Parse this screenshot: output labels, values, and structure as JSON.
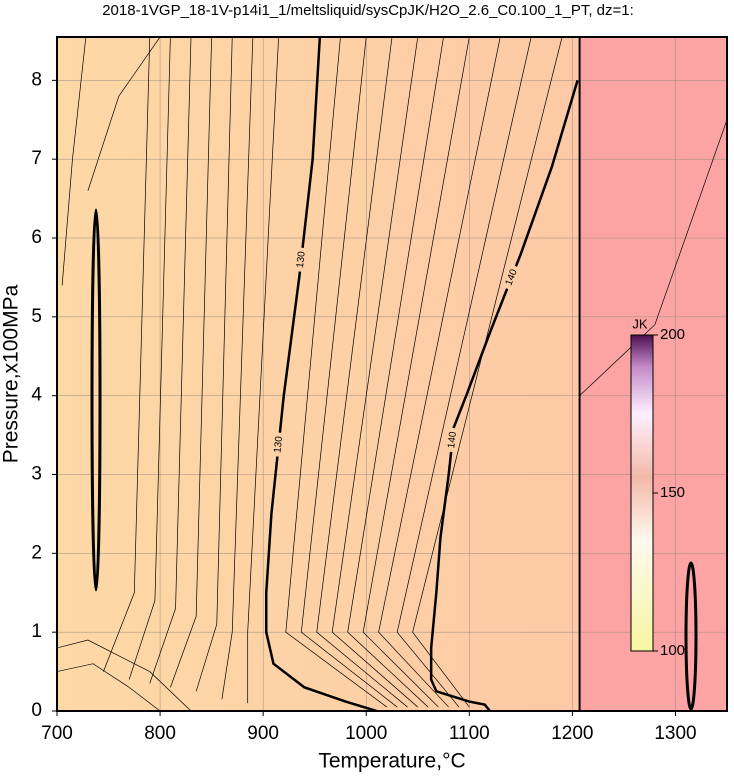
{
  "chart_data": {
    "type": "contour",
    "title": "2018-1VGP_18-1V-p14i1_1/meltsliquid/sysCpJK/H2O_2.6_C0.100_1_PT, dz=1:",
    "x_label": "Temperature,°C",
    "y_label": "Pressure,x100MPa",
    "xlim": [
      700,
      1350
    ],
    "ylim": [
      0,
      8.55
    ],
    "xticks": [
      700,
      800,
      900,
      1000,
      1100,
      1200,
      1300
    ],
    "yticks": [
      0,
      1,
      2,
      3,
      4,
      5,
      6,
      7,
      8
    ],
    "grid": true,
    "contours": [
      {
        "level": 130,
        "x": [
          955,
          948,
          935,
          920,
          908,
          903,
          903,
          910,
          940,
          980,
          1010
        ],
        "y": [
          8.55,
          7,
          5.5,
          4,
          2.5,
          1.5,
          1,
          0.6,
          0.3,
          0.12,
          0
        ]
      },
      {
        "level": 140,
        "x": [
          1205,
          1180,
          1150,
          1120,
          1097,
          1085,
          1080,
          1072,
          1068,
          1063,
          1063,
          1068,
          1080,
          1100,
          1115,
          1120
        ],
        "y": [
          8,
          6.9,
          5.8,
          4.8,
          4,
          3.6,
          3,
          2.2,
          1.5,
          0.8,
          0.4,
          0.25,
          0.2,
          0.12,
          0.08,
          0
        ]
      }
    ],
    "lines": [
      {
        "x": [
          1207,
          1207
        ],
        "y": [
          0,
          8.55
        ]
      },
      {
        "x": [
          790,
          775,
          745
        ],
        "y": [
          8.55,
          1.5,
          0.5
        ]
      },
      {
        "x": [
          810,
          795,
          770
        ],
        "y": [
          8.55,
          1.4,
          0.4
        ]
      },
      {
        "x": [
          830,
          815,
          790
        ],
        "y": [
          8.55,
          1.3,
          0.35
        ]
      },
      {
        "x": [
          850,
          835,
          810
        ],
        "y": [
          8.55,
          1.2,
          0.3
        ]
      },
      {
        "x": [
          870,
          855,
          835
        ],
        "y": [
          8.55,
          1.1,
          0.25
        ]
      },
      {
        "x": [
          890,
          870,
          860
        ],
        "y": [
          8.55,
          1,
          0.15
        ]
      },
      {
        "x": [
          915,
          885,
          885
        ],
        "y": [
          8.55,
          1,
          0.1
        ]
      },
      {
        "x": [
          975,
          922,
          1020
        ],
        "y": [
          8.55,
          1,
          0.05
        ]
      },
      {
        "x": [
          1000,
          937,
          1030
        ],
        "y": [
          8.55,
          1,
          0.05
        ]
      },
      {
        "x": [
          1025,
          952,
          1040
        ],
        "y": [
          8.55,
          1,
          0.05
        ]
      },
      {
        "x": [
          1050,
          967,
          1050
        ],
        "y": [
          8.55,
          1,
          0.05
        ]
      },
      {
        "x": [
          1075,
          982,
          1060
        ],
        "y": [
          8.55,
          1,
          0.05
        ]
      },
      {
        "x": [
          1100,
          997,
          1070
        ],
        "y": [
          8.55,
          1,
          0.05
        ]
      },
      {
        "x": [
          1130,
          1012,
          1080
        ],
        "y": [
          8.55,
          1,
          0.05
        ]
      },
      {
        "x": [
          1160,
          1030,
          1090
        ],
        "y": [
          8.55,
          1,
          0.05
        ]
      },
      {
        "x": [
          1190,
          1045,
          1100
        ],
        "y": [
          8.55,
          1,
          0.05
        ]
      },
      {
        "x": [
          700,
          730,
          790,
          830
        ],
        "y": [
          0.8,
          0.9,
          0.5,
          0
        ]
      },
      {
        "x": [
          700,
          735,
          770,
          800
        ],
        "y": [
          0.5,
          0.6,
          0.3,
          0
        ]
      },
      {
        "x": [
          705,
          715,
          728,
          740
        ],
        "y": [
          5.4,
          7,
          8.55,
          8.55
        ]
      },
      {
        "x": [
          730,
          760,
          800
        ],
        "y": [
          6.6,
          7.8,
          8.55
        ]
      },
      {
        "x": [
          1207,
          1280,
          1350
        ],
        "y": [
          4,
          4.9,
          7.5
        ]
      }
    ],
    "colorbar": {
      "label": "JK",
      "lim": [
        100,
        200
      ],
      "ticks": [
        100,
        150,
        200
      ]
    }
  }
}
